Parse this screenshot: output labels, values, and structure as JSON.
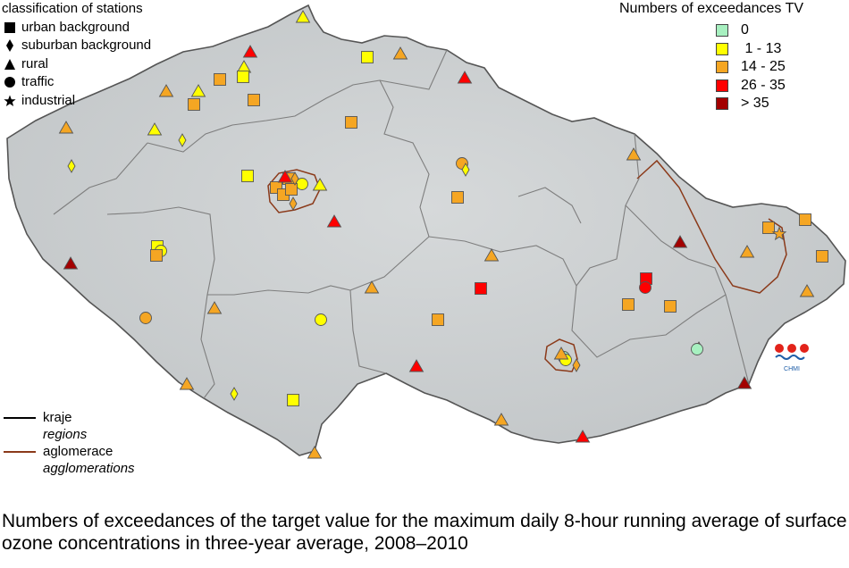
{
  "station_legend": {
    "title": "classification of stations",
    "items": [
      {
        "shape": "square",
        "label": "urban background"
      },
      {
        "shape": "diamond",
        "label": "suburban background"
      },
      {
        "shape": "triangle",
        "label": "rural"
      },
      {
        "shape": "circle",
        "label": "traffic"
      },
      {
        "shape": "star",
        "label": "industrial"
      }
    ]
  },
  "exceedance_legend": {
    "title": "Numbers of exceedances TV",
    "items": [
      {
        "label": "0",
        "color": "#a7f0c0"
      },
      {
        "label": " 1 - 13",
        "color": "#ffff00"
      },
      {
        "label": "14 - 25",
        "color": "#f5a623"
      },
      {
        "label": "26 - 35",
        "color": "#ff0000"
      },
      {
        "label": "> 35",
        "color": "#a30000"
      }
    ]
  },
  "line_legend": {
    "regions_label": "kraje",
    "regions_label_en": "regions",
    "regions_color": "#000000",
    "agglomerations_label": "aglomerace",
    "agglomerations_label_en": "agglomerations",
    "agglomerations_color": "#8b3a1a"
  },
  "logo": {
    "text": "CHMI",
    "icon": "chmi-logo-icon"
  },
  "caption": "Numbers of exceedances of the target value for the maximum daily 8-hour running average of surface ozone concentrations in three-year average, 2008–2010",
  "colors": {
    "land": "#cdd1d3",
    "border": "#5a5a5a",
    "region_line": "#8a8a8a",
    "agglomeration_line": "#8b3a1a"
  }
}
